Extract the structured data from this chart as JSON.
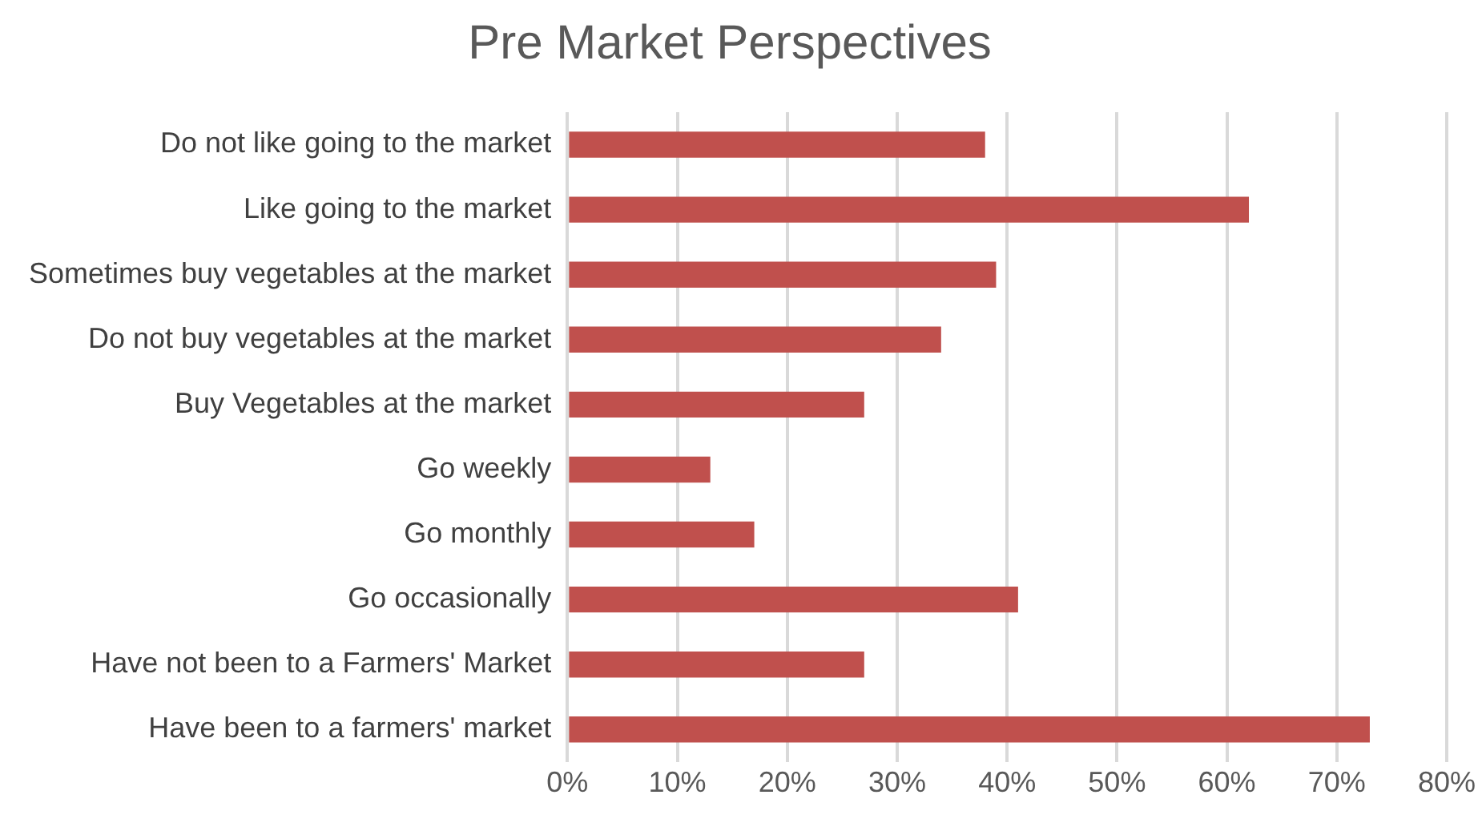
{
  "chart_data": {
    "type": "bar",
    "orientation": "horizontal",
    "title": "Pre Market Perspectives",
    "categories": [
      "Do not like going to the market",
      "Like going to the market",
      "Sometimes buy vegetables at the market",
      "Do not buy vegetables at the market",
      "Buy Vegetables at the market",
      "Go weekly",
      "Go monthly",
      "Go occasionally",
      "Have not been to a Farmers' Market",
      "Have been to a farmers' market"
    ],
    "values": [
      38,
      62,
      39,
      34,
      27,
      13,
      17,
      41,
      27,
      73
    ],
    "color": "#c0504d",
    "xlim": [
      0,
      80
    ],
    "xticks": [
      {
        "value": 0,
        "label": "0%"
      },
      {
        "value": 10,
        "label": "10%"
      },
      {
        "value": 20,
        "label": "20%"
      },
      {
        "value": 30,
        "label": "30%"
      },
      {
        "value": 40,
        "label": "40%"
      },
      {
        "value": 50,
        "label": "50%"
      },
      {
        "value": 60,
        "label": "60%"
      },
      {
        "value": 70,
        "label": "70%"
      },
      {
        "value": 80,
        "label": "80%"
      }
    ],
    "grid": "x",
    "legend": false
  }
}
